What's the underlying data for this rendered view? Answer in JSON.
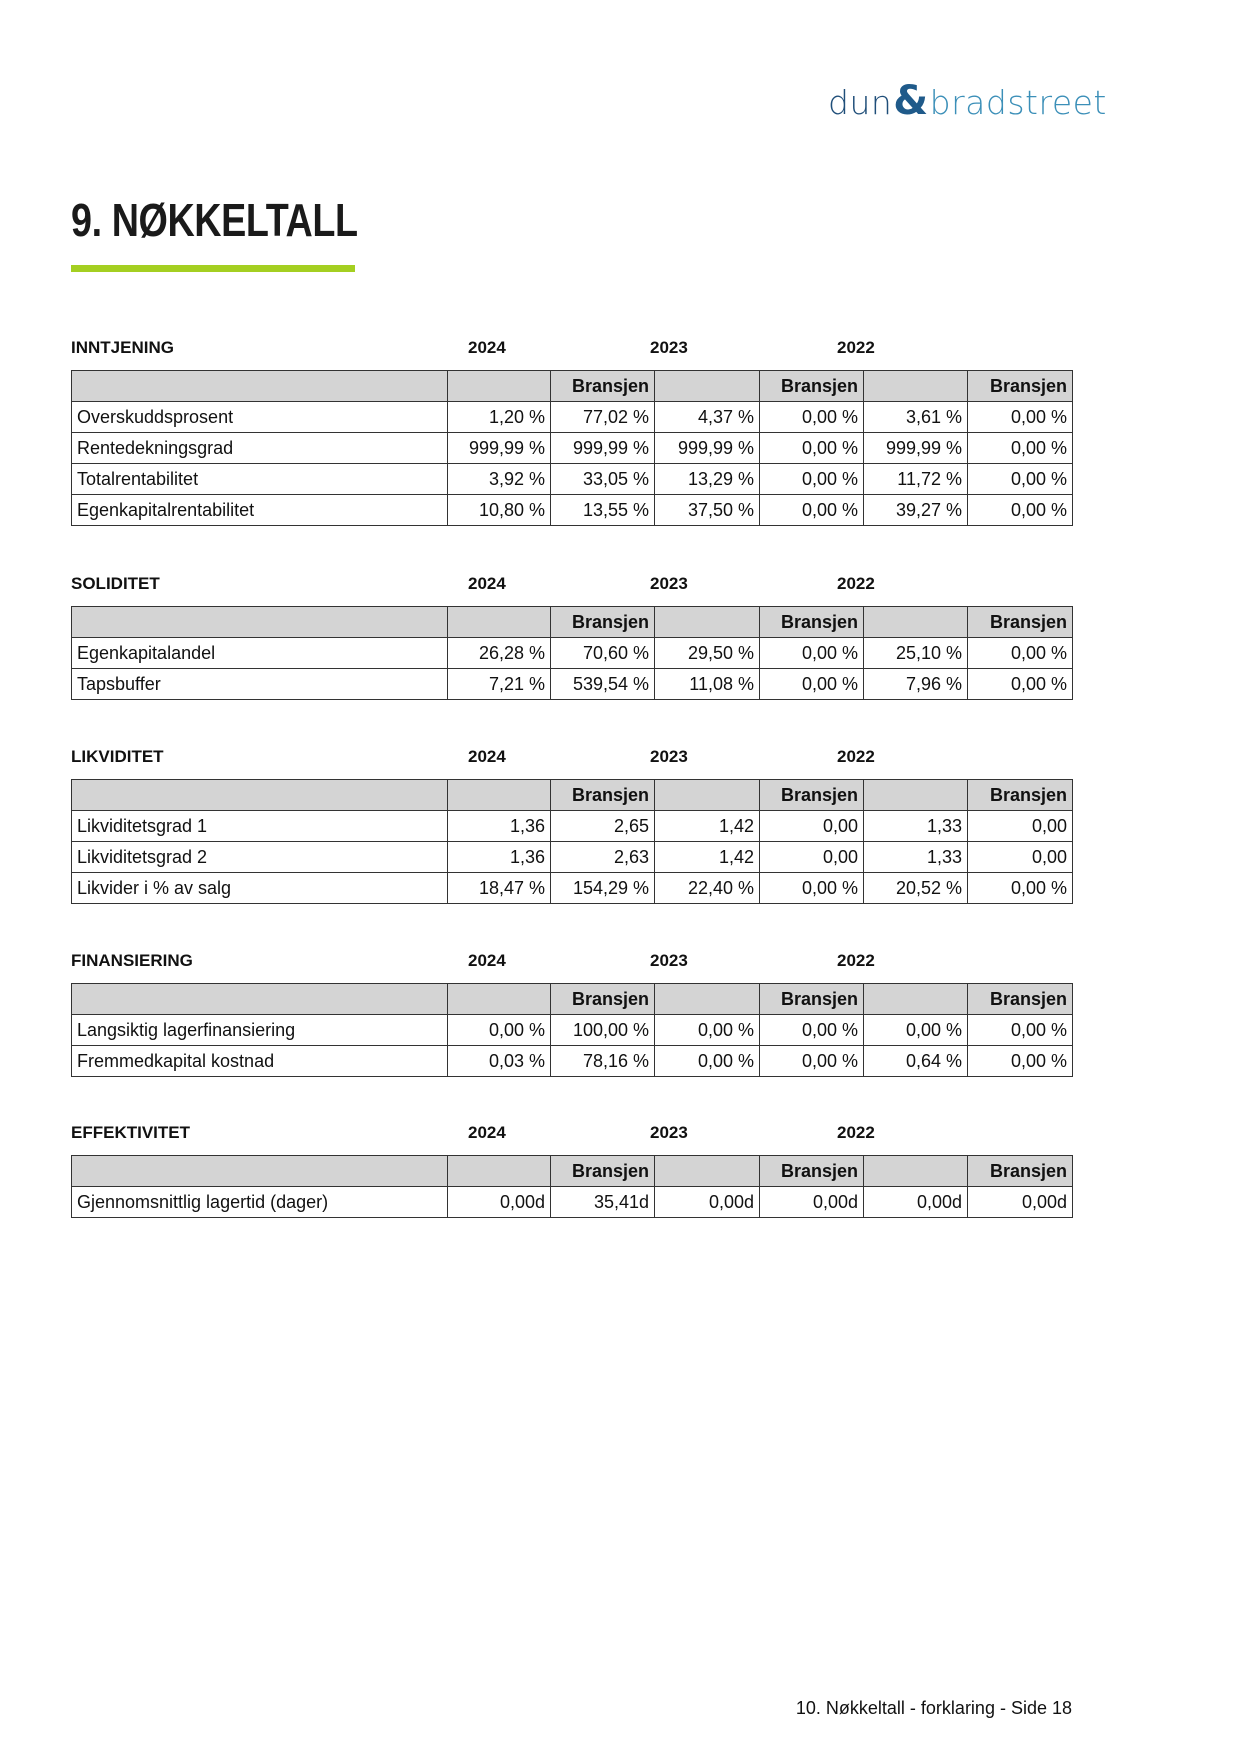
{
  "logo": {
    "part1": "dun",
    "amp": "&",
    "part2": "bradstreet"
  },
  "title": "9. NØKKELTALL",
  "branch_label": "Bransjen",
  "years": [
    "2024",
    "2023",
    "2022"
  ],
  "sections": [
    {
      "name": "INNTJENING",
      "rows": [
        {
          "label": "Overskuddsprosent",
          "values": [
            "1,20 %",
            "77,02 %",
            "4,37 %",
            "0,00 %",
            "3,61 %",
            "0,00 %"
          ]
        },
        {
          "label": "Rentedekningsgrad",
          "values": [
            "999,99 %",
            "999,99 %",
            "999,99 %",
            "0,00 %",
            "999,99 %",
            "0,00 %"
          ]
        },
        {
          "label": "Totalrentabilitet",
          "values": [
            "3,92 %",
            "33,05 %",
            "13,29 %",
            "0,00 %",
            "11,72 %",
            "0,00 %"
          ]
        },
        {
          "label": "Egenkapitalrentabilitet",
          "values": [
            "10,80 %",
            "13,55 %",
            "37,50 %",
            "0,00 %",
            "39,27 %",
            "0,00 %"
          ]
        }
      ]
    },
    {
      "name": "SOLIDITET",
      "rows": [
        {
          "label": "Egenkapitalandel",
          "values": [
            "26,28 %",
            "70,60 %",
            "29,50 %",
            "0,00 %",
            "25,10 %",
            "0,00 %"
          ]
        },
        {
          "label": "Tapsbuffer",
          "values": [
            "7,21 %",
            "539,54 %",
            "11,08 %",
            "0,00 %",
            "7,96 %",
            "0,00 %"
          ]
        }
      ]
    },
    {
      "name": "LIKVIDITET",
      "rows": [
        {
          "label": "Likviditetsgrad 1",
          "values": [
            "1,36",
            "2,65",
            "1,42",
            "0,00",
            "1,33",
            "0,00"
          ]
        },
        {
          "label": "Likviditetsgrad 2",
          "values": [
            "1,36",
            "2,63",
            "1,42",
            "0,00",
            "1,33",
            "0,00"
          ]
        },
        {
          "label": "Likvider i % av salg",
          "values": [
            "18,47 %",
            "154,29 %",
            "22,40 %",
            "0,00 %",
            "20,52 %",
            "0,00 %"
          ]
        }
      ]
    },
    {
      "name": "FINANSIERING",
      "rows": [
        {
          "label": "Langsiktig lagerfinansiering",
          "values": [
            "0,00 %",
            "100,00 %",
            "0,00 %",
            "0,00 %",
            "0,00 %",
            "0,00 %"
          ]
        },
        {
          "label": "Fremmedkapital kostnad",
          "values": [
            "0,03 %",
            "78,16 %",
            "0,00 %",
            "0,00 %",
            "0,64 %",
            "0,00 %"
          ]
        }
      ]
    },
    {
      "name": "EFFEKTIVITET",
      "rows": [
        {
          "label": "Gjennomsnittlig lagertid (dager)",
          "values": [
            "0,00d",
            "35,41d",
            "0,00d",
            "0,00d",
            "0,00d",
            "0,00d"
          ]
        }
      ]
    }
  ],
  "footer": "10. Nøkkeltall - forklaring - Side 18",
  "colors": {
    "accent_bar": "#a4cf21",
    "header_fill": "#d4d4d4",
    "logo_dark": "#1f4e79",
    "logo_light": "#3b8fb8"
  }
}
